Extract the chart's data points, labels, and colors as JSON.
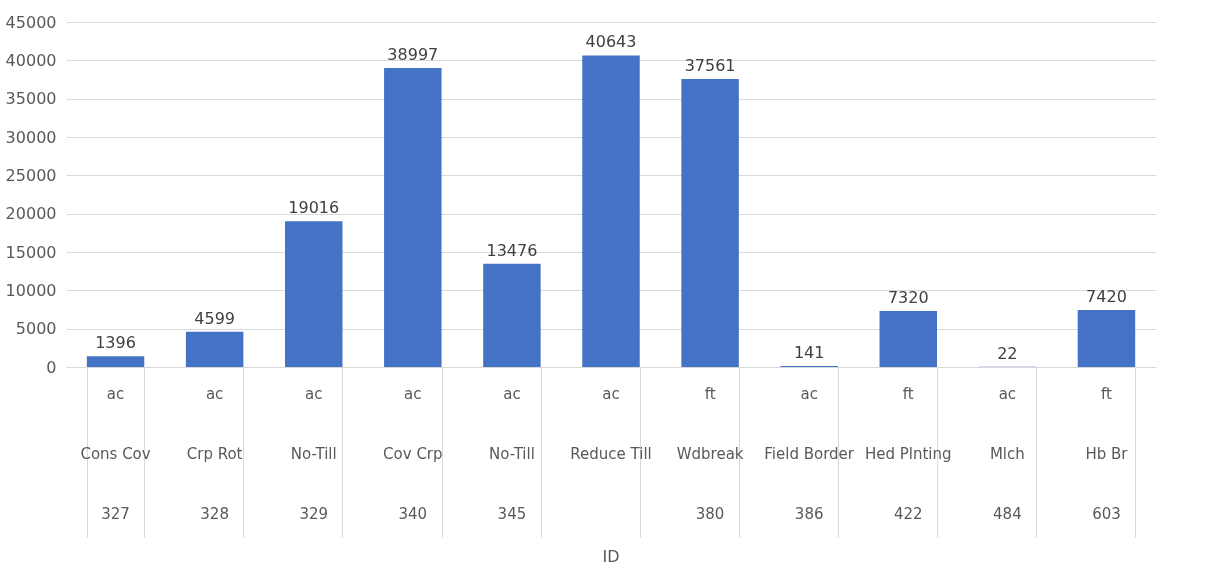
{
  "chart_data": {
    "type": "bar",
    "annotations": [
      "ID"
    ],
    "categories": [
      "ac\nCons Cov\n327",
      "ac\nCrp Rot\n328",
      "ac\nNo-Till\n329",
      "ac\nCov Crp\n340",
      "ac\nNo-Till\n345",
      "ac\nReduce Till",
      "ft\nWdbreak\n380",
      "ac\nField Border\n386",
      "ft\nHed Plnting\n422",
      "ac\nMlch\n484",
      "ft\nHb Br\n603"
    ],
    "values": [
      1396,
      4599,
      19016,
      38997,
      13476,
      40643,
      37561,
      141,
      7320,
      22,
      7420
    ],
    "color": "#4472c4",
    "data_labels": true,
    "grid": "y",
    "ylim": [
      0,
      45000
    ],
    "yticks": [
      0,
      5000,
      10000,
      15000,
      20000,
      25000,
      30000,
      35000,
      40000,
      45000
    ]
  }
}
